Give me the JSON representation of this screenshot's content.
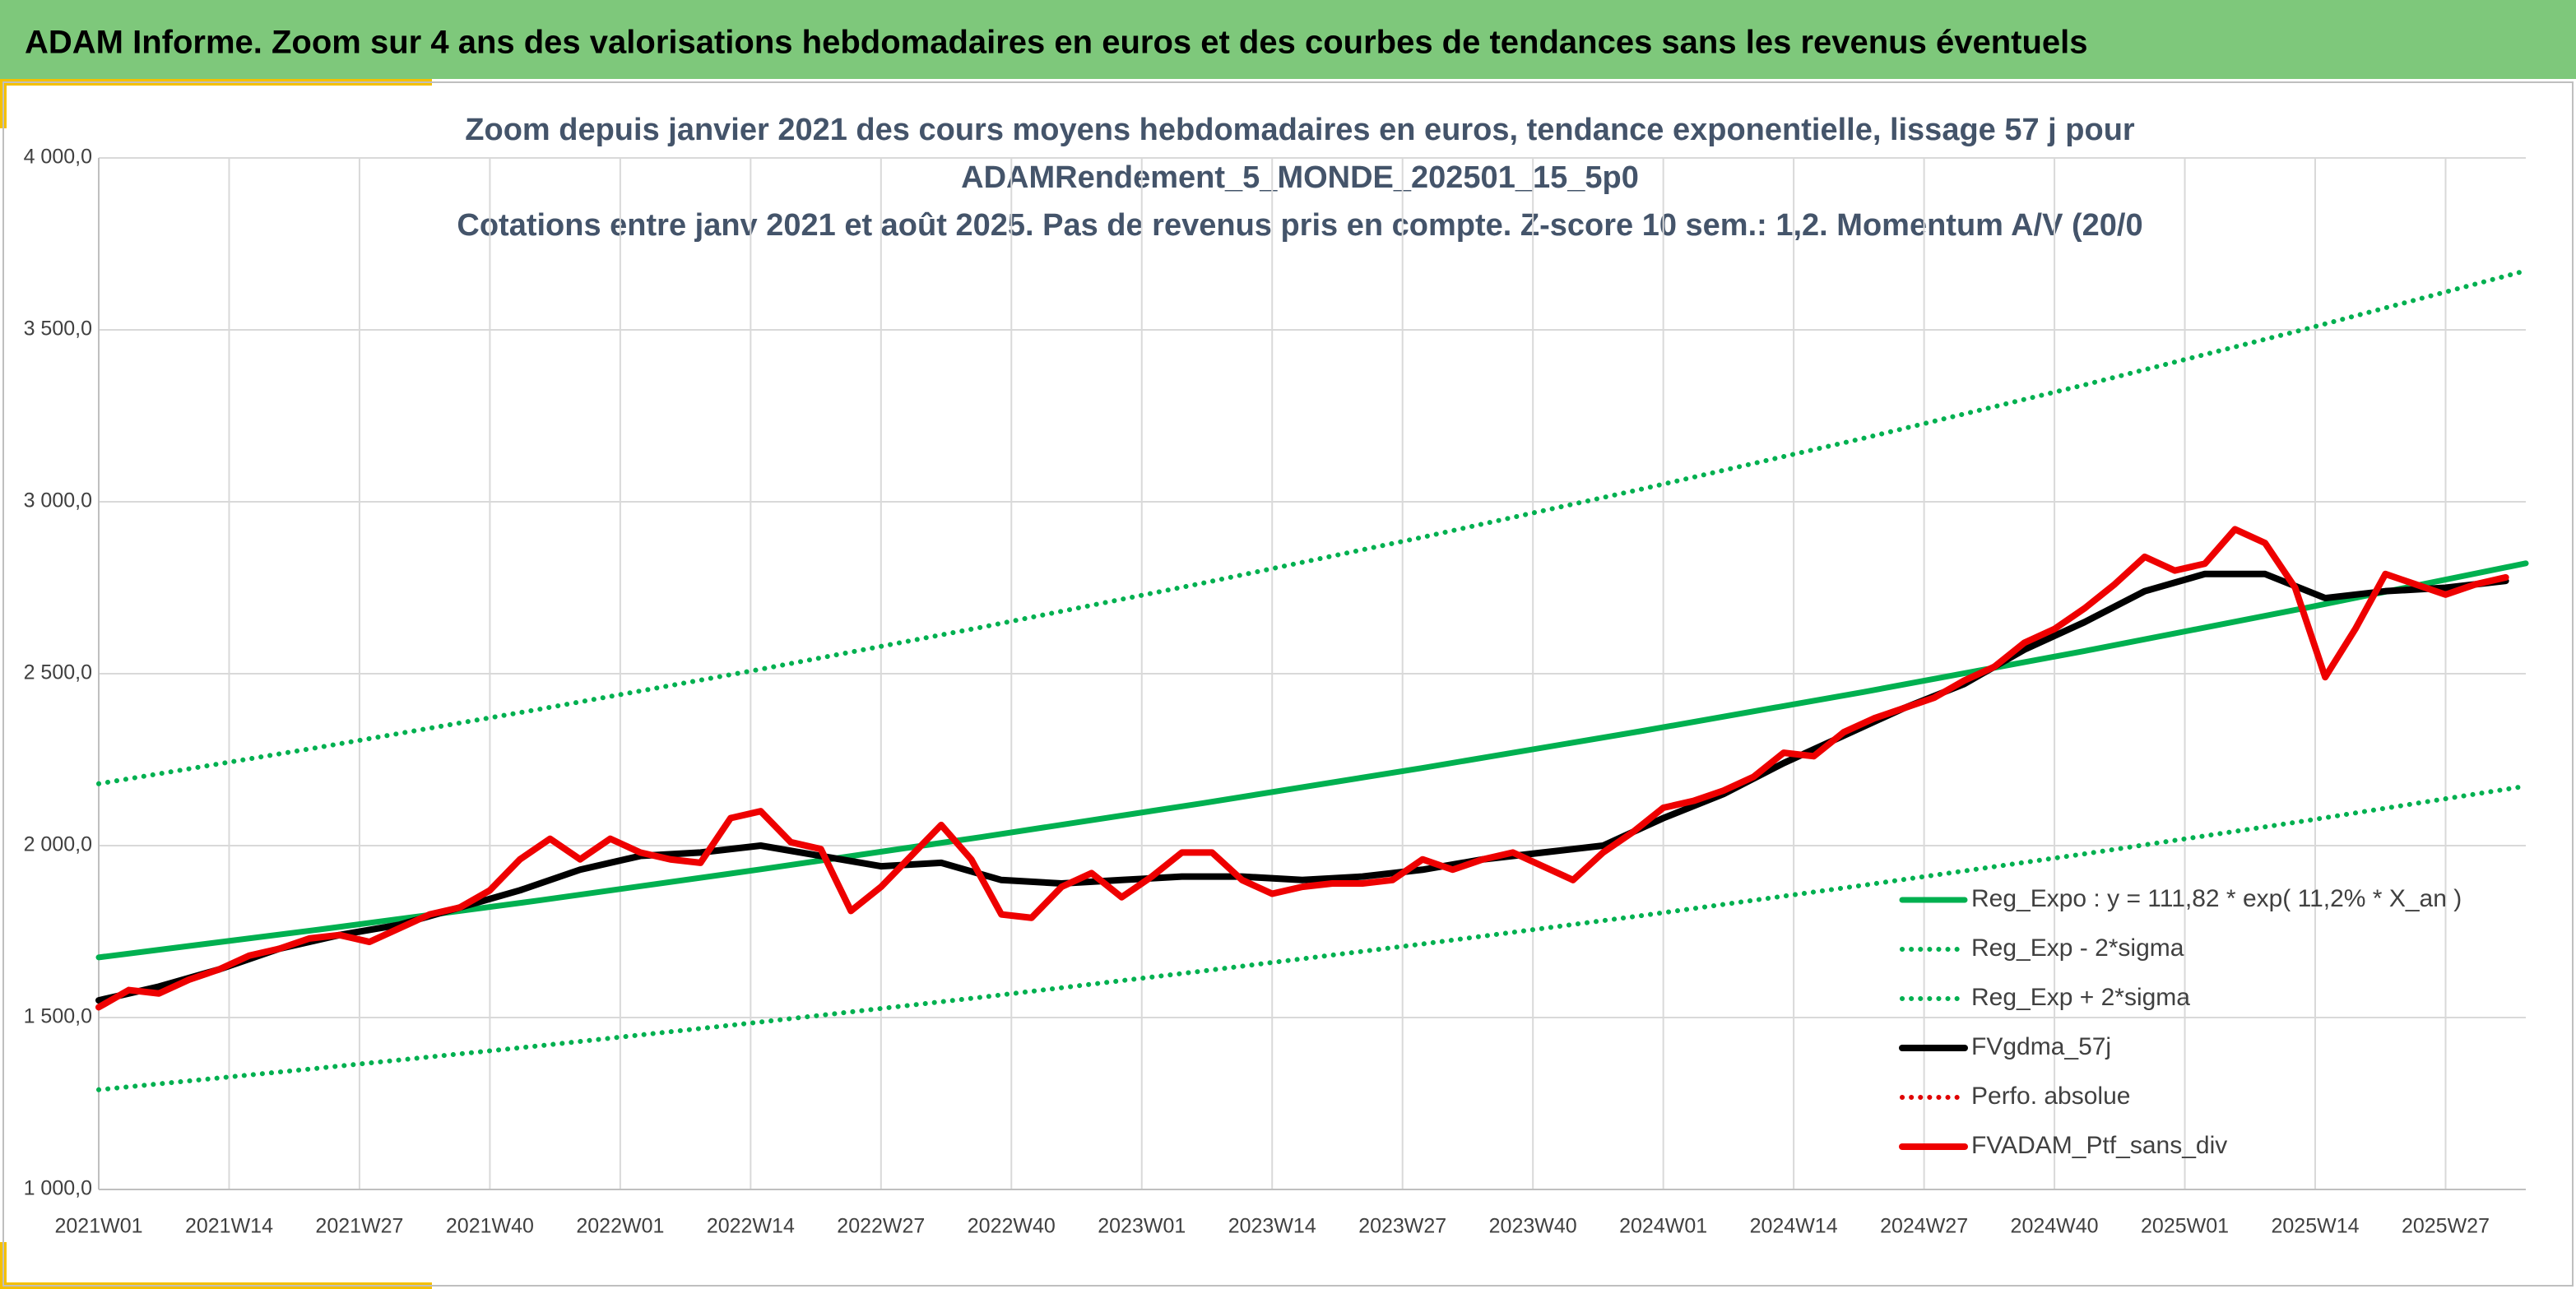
{
  "banner": "ADAM Informe. Zoom sur 4 ans des valorisations hebdomadaires en euros et des courbes de tendances sans les revenus éventuels",
  "chart_data": {
    "type": "line",
    "title": [
      "Zoom depuis janvier 2021 des cours moyens hebdomadaires en euros, tendance exponentielle, lissage 57 j pour",
      "ADAMRendement_5_MONDE_202501_15_5p0",
      "Cotations entre janv 2021 et août 2025. Pas de revenus pris en compte. Z-score 10 sem.: 1,2. Momentum A/V (20/0"
    ],
    "xlim": [
      0,
      242
    ],
    "xticks": [
      {
        "value": 0,
        "label": "2021W01"
      },
      {
        "value": 13,
        "label": "2021W14"
      },
      {
        "value": 26,
        "label": "2021W27"
      },
      {
        "value": 39,
        "label": "2021W40"
      },
      {
        "value": 52,
        "label": "2022W01"
      },
      {
        "value": 65,
        "label": "2022W14"
      },
      {
        "value": 78,
        "label": "2022W27"
      },
      {
        "value": 91,
        "label": "2022W40"
      },
      {
        "value": 104,
        "label": "2023W01"
      },
      {
        "value": 117,
        "label": "2023W14"
      },
      {
        "value": 130,
        "label": "2023W27"
      },
      {
        "value": 143,
        "label": "2023W40"
      },
      {
        "value": 156,
        "label": "2024W01"
      },
      {
        "value": 169,
        "label": "2024W14"
      },
      {
        "value": 182,
        "label": "2024W27"
      },
      {
        "value": 195,
        "label": "2024W40"
      },
      {
        "value": 208,
        "label": "2025W01"
      },
      {
        "value": 221,
        "label": "2025W14"
      },
      {
        "value": 234,
        "label": "2025W27"
      }
    ],
    "ylim": [
      1000,
      4000
    ],
    "yticks": [
      {
        "value": 1000,
        "label": "1 000,0"
      },
      {
        "value": 1500,
        "label": "1 500,0"
      },
      {
        "value": 2000,
        "label": "2 000,0"
      },
      {
        "value": 2500,
        "label": "2 500,0"
      },
      {
        "value": 3000,
        "label": "3 000,0"
      },
      {
        "value": 3500,
        "label": "3 500,0"
      },
      {
        "value": 4000,
        "label": "4 000,0"
      }
    ],
    "grid": true,
    "legend": "right",
    "series": [
      {
        "name": "Reg_Expo : y = 111,82 * exp( 11,2% *  X_an )",
        "color": "#00b050",
        "style": "solid",
        "x": [
          0,
          22,
          44,
          66,
          88,
          110,
          132,
          154,
          176,
          198,
          220,
          242
        ],
        "values": [
          1675,
          1756,
          1841,
          1931,
          2025,
          2123,
          2226,
          2334,
          2447,
          2566,
          2691,
          2821
        ]
      },
      {
        "name": "Reg_Exp - 2*sigma",
        "color": "#00b050",
        "style": "dotted",
        "x": [
          0,
          22,
          44,
          66,
          88,
          110,
          132,
          154,
          176,
          198,
          220,
          242
        ],
        "values": [
          1290,
          1353,
          1418,
          1487,
          1559,
          1635,
          1714,
          1797,
          1885,
          1976,
          2072,
          2173
        ]
      },
      {
        "name": "Reg_Exp + 2*sigma",
        "color": "#00b050",
        "style": "dotted",
        "x": [
          0,
          22,
          44,
          66,
          88,
          110,
          132,
          154,
          176,
          198,
          220,
          242
        ],
        "values": [
          2180,
          2286,
          2397,
          2513,
          2635,
          2763,
          2897,
          3038,
          3185,
          3340,
          3502,
          3672
        ]
      },
      {
        "name": "FVgdma_57j",
        "color": "#000000",
        "style": "solid",
        "x": [
          0,
          6,
          12,
          18,
          24,
          30,
          36,
          42,
          48,
          54,
          60,
          66,
          72,
          78,
          84,
          90,
          96,
          102,
          108,
          114,
          120,
          126,
          132,
          138,
          144,
          150,
          156,
          162,
          168,
          174,
          180,
          186,
          192,
          198,
          204,
          210,
          216,
          222,
          228,
          234,
          240
        ],
        "values": [
          1550,
          1590,
          1640,
          1700,
          1740,
          1770,
          1820,
          1870,
          1930,
          1970,
          1980,
          2000,
          1970,
          1940,
          1950,
          1900,
          1890,
          1900,
          1910,
          1910,
          1900,
          1910,
          1930,
          1960,
          1980,
          2000,
          2080,
          2150,
          2240,
          2320,
          2400,
          2470,
          2570,
          2650,
          2740,
          2790,
          2790,
          2720,
          2740,
          2750,
          2770
        ]
      },
      {
        "name": "Perfo. absolue",
        "color": "#e00000",
        "style": "dotted",
        "x": [],
        "values": []
      },
      {
        "name": "FVADAM_Ptf_sans_div",
        "color": "#ee0000",
        "style": "solid",
        "x": [
          0,
          3,
          6,
          9,
          12,
          15,
          18,
          21,
          24,
          27,
          30,
          33,
          36,
          39,
          42,
          45,
          48,
          51,
          54,
          57,
          60,
          63,
          66,
          69,
          72,
          75,
          78,
          81,
          84,
          87,
          90,
          93,
          96,
          99,
          102,
          105,
          108,
          111,
          114,
          117,
          120,
          123,
          126,
          129,
          132,
          135,
          138,
          141,
          144,
          147,
          150,
          153,
          156,
          159,
          162,
          165,
          168,
          171,
          174,
          177,
          180,
          183,
          186,
          189,
          192,
          195,
          198,
          201,
          204,
          207,
          210,
          213,
          216,
          219,
          222,
          225,
          228,
          231,
          234,
          237,
          240
        ],
        "values": [
          1530,
          1580,
          1570,
          1610,
          1640,
          1680,
          1700,
          1730,
          1740,
          1720,
          1760,
          1800,
          1820,
          1870,
          1960,
          2020,
          1960,
          2020,
          1980,
          1960,
          1950,
          2080,
          2100,
          2010,
          1990,
          1810,
          1880,
          1970,
          2060,
          1960,
          1800,
          1790,
          1880,
          1920,
          1850,
          1910,
          1980,
          1980,
          1900,
          1860,
          1880,
          1890,
          1890,
          1900,
          1960,
          1930,
          1960,
          1980,
          1940,
          1900,
          1980,
          2040,
          2110,
          2130,
          2160,
          2200,
          2270,
          2260,
          2330,
          2370,
          2400,
          2430,
          2480,
          2520,
          2590,
          2630,
          2690,
          2760,
          2840,
          2800,
          2820,
          2920,
          2880,
          2750,
          2490,
          2630,
          2790,
          2760,
          2730,
          2760,
          2780
        ]
      }
    ]
  }
}
